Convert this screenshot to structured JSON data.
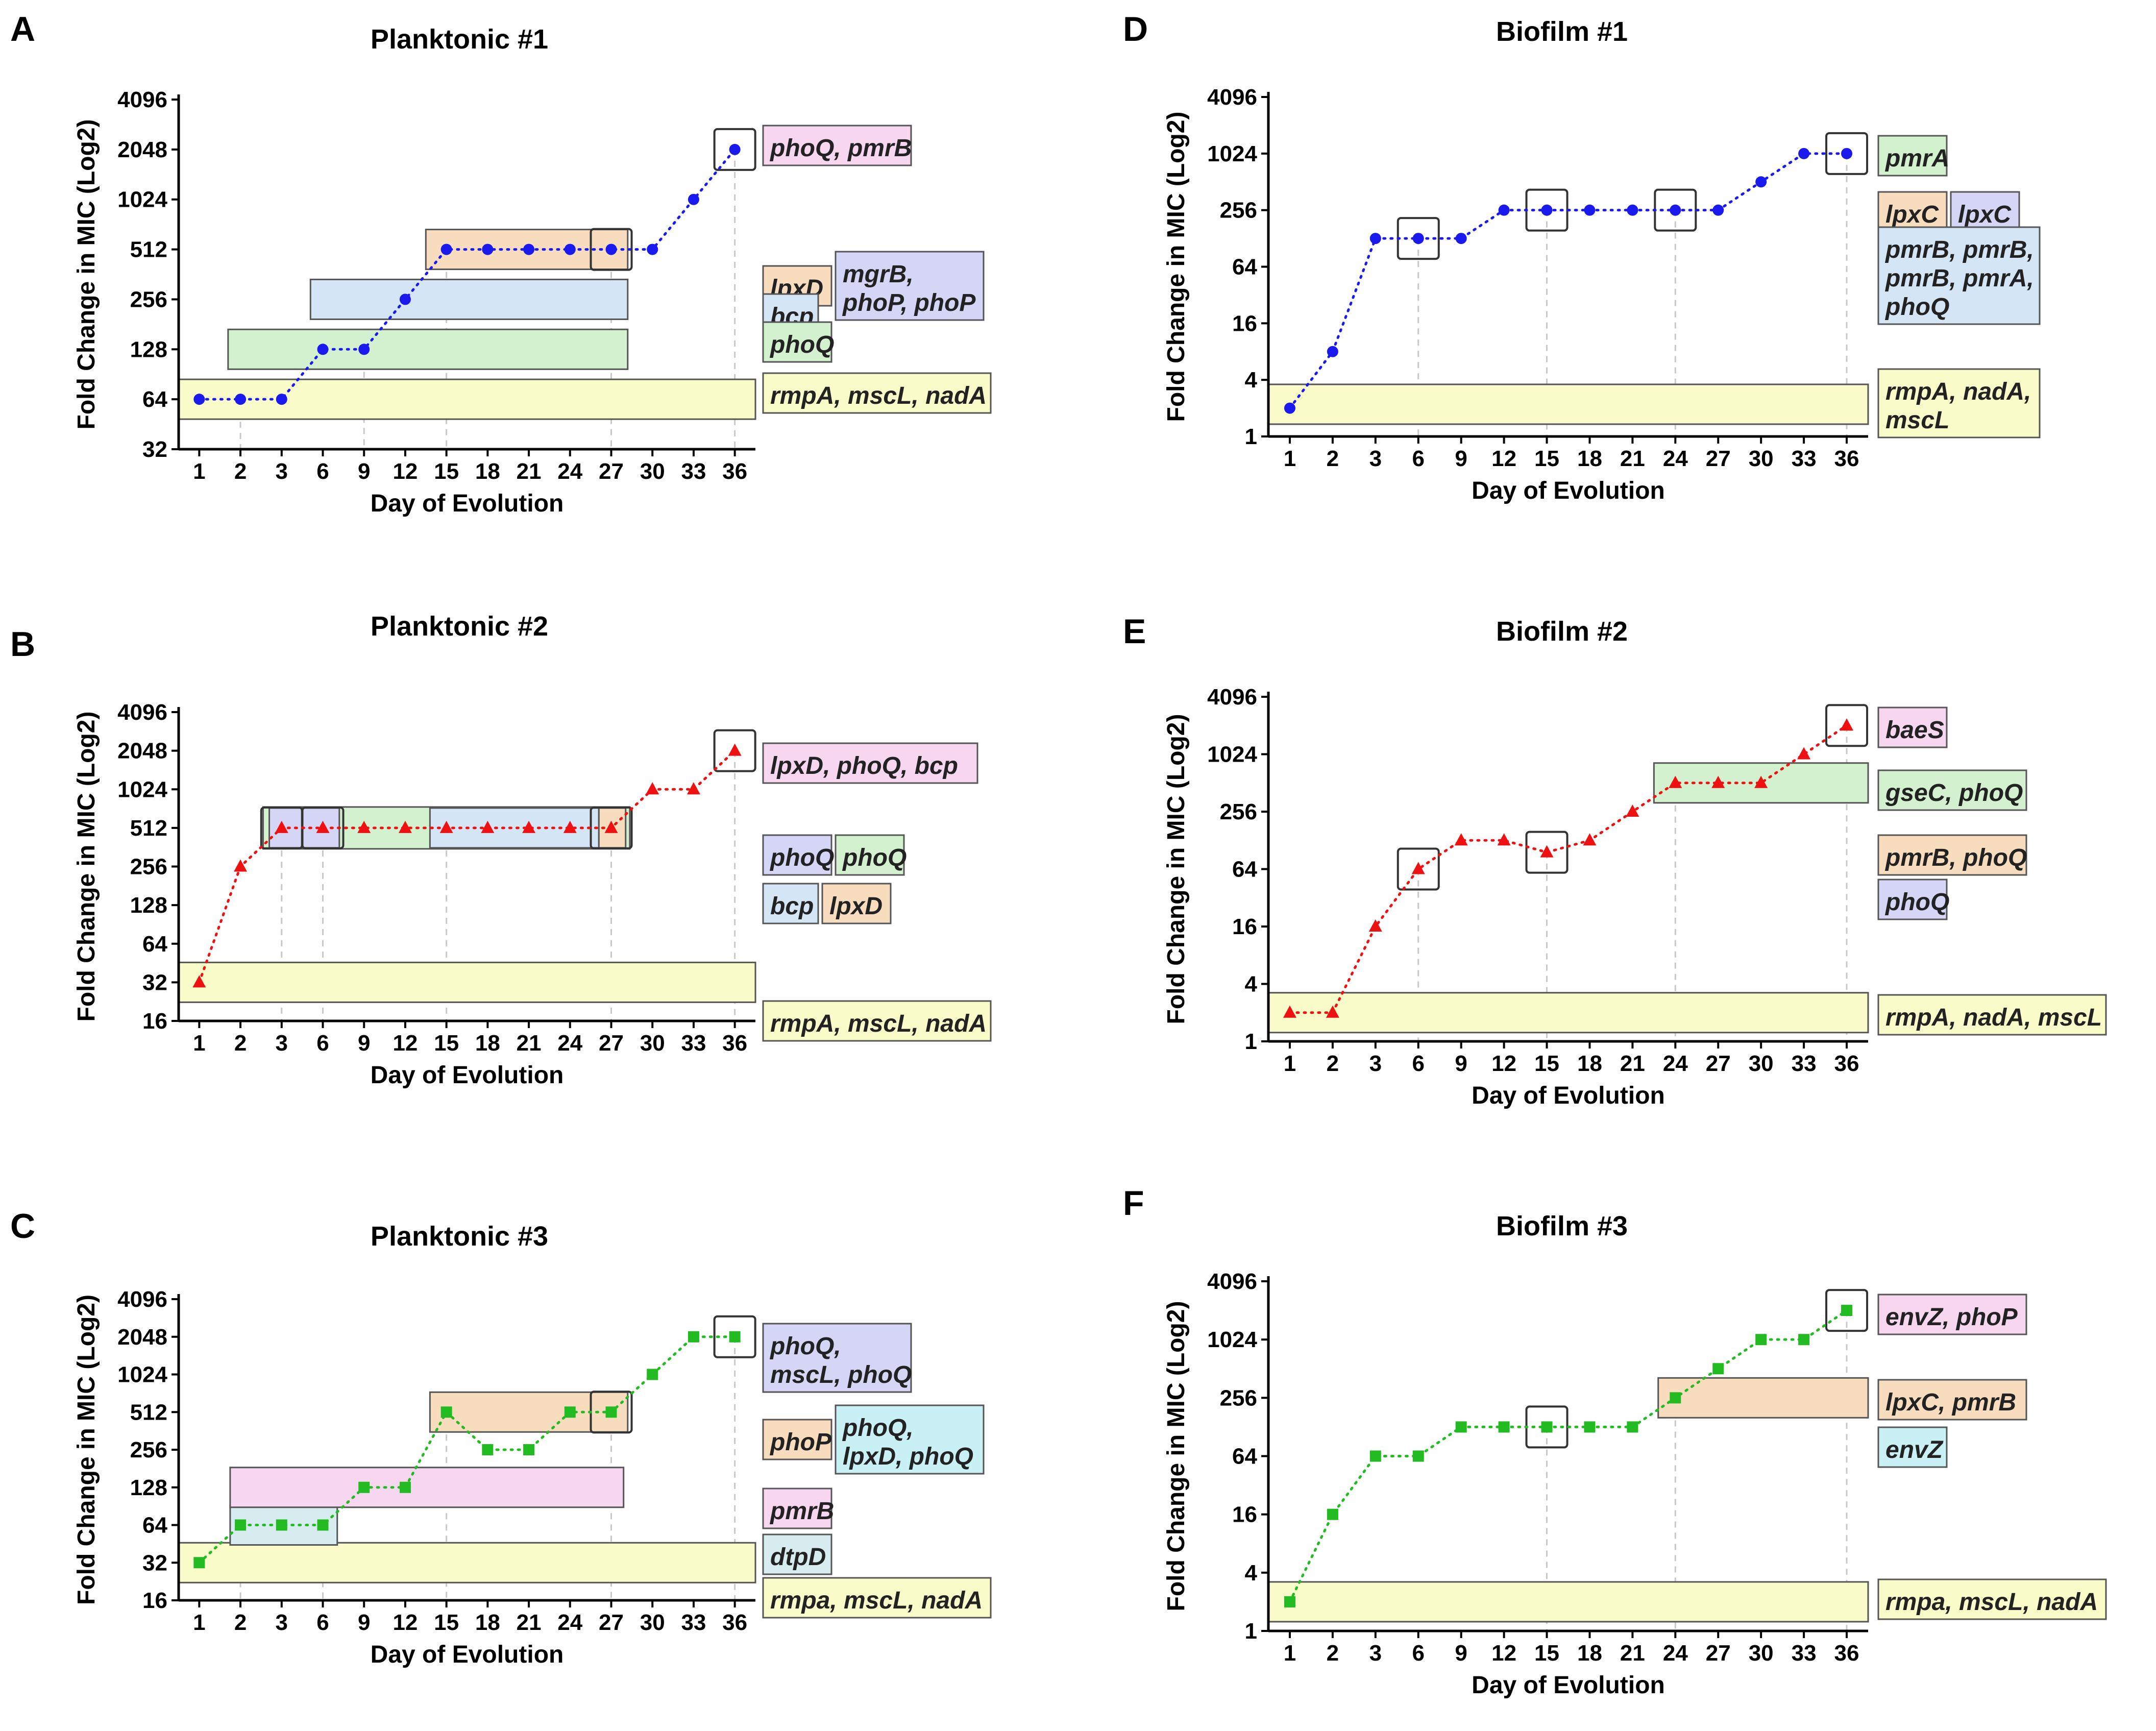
{
  "figure": {
    "colors": {
      "yellow": "#f9fbc9",
      "green": "#d3f1cf",
      "blue": "#d4e6f6",
      "orange": "#f8dcbe",
      "lavender": "#d5d5f6",
      "pink": "#f7d7ef",
      "cyan": "#c9f0f5",
      "series_blue": "#1a1aee",
      "series_red": "#ee1111",
      "series_green": "#22bb22",
      "grid": "#c8c8c8"
    },
    "panels": [
      {
        "letter": "A",
        "title": "Planktonic #1",
        "ylabel": "Fold Change in MIC (Log2)",
        "xlabel": "Day of Evolution",
        "chart_data": {
          "type": "line",
          "categories": [
            "1",
            "2",
            "3",
            "6",
            "9",
            "12",
            "15",
            "18",
            "21",
            "24",
            "27",
            "30",
            "33",
            "36"
          ],
          "values": [
            64,
            64,
            64,
            128,
            128,
            256,
            512,
            512,
            512,
            512,
            512,
            512,
            1024,
            2048
          ],
          "y_log2": true,
          "yticks": [
            32,
            64,
            128,
            256,
            512,
            1024,
            2048,
            4096
          ],
          "ytick_labels": [
            "32",
            "64",
            "128",
            "256",
            "512",
            "1024",
            "2048",
            "4096"
          ],
          "marker": "circle",
          "color": "#1a1aee",
          "highlight_days": [
            10,
            13
          ],
          "vlines": [
            1,
            4,
            6,
            10,
            13
          ],
          "spans": [
            {
              "from": -0.5,
              "to": 13.5,
              "level": 64,
              "color": "#f9fbc9"
            },
            {
              "from": 0.7,
              "to": 10.4,
              "level": 128,
              "color": "#d3f1cf"
            },
            {
              "from": 2.7,
              "to": 10.4,
              "level": 256,
              "color": "#d4e6f6"
            },
            {
              "from": 5.5,
              "to": 10.4,
              "level": 512,
              "color": "#f8dcbe"
            }
          ]
        },
        "labels": [
          {
            "boxes": [
              {
                "text": "phoQ, pmrB",
                "color": "#f7d7ef"
              }
            ]
          },
          {
            "boxes": [
              {
                "text": "lpxD",
                "color": "#f8dcbe"
              },
              {
                "text": "mgrB, / phoP, phoP",
                "color": "#d5d5f6"
              }
            ]
          },
          {
            "boxes": [
              {
                "text": "bcp",
                "color": "#d4e6f6"
              }
            ]
          },
          {
            "boxes": [
              {
                "text": "phoQ",
                "color": "#d3f1cf"
              }
            ]
          },
          {
            "boxes": [
              {
                "text": "rmpA, mscL, nadA",
                "color": "#f9fbc9"
              }
            ]
          }
        ]
      },
      {
        "letter": "B",
        "title": "Planktonic #2",
        "ylabel": "Fold Change in MIC (Log2)",
        "xlabel": "Day of Evolution",
        "chart_data": {
          "type": "line",
          "categories": [
            "1",
            "2",
            "3",
            "6",
            "9",
            "12",
            "15",
            "18",
            "21",
            "24",
            "27",
            "30",
            "33",
            "36"
          ],
          "values": [
            32,
            256,
            512,
            512,
            512,
            512,
            512,
            512,
            512,
            512,
            512,
            1024,
            1024,
            2048
          ],
          "y_log2": true,
          "yticks": [
            16,
            32,
            64,
            128,
            256,
            512,
            1024,
            2048,
            4096
          ],
          "ytick_labels": [
            "16",
            "32",
            "64",
            "128",
            "256",
            "512",
            "1024",
            "2048",
            "4096"
          ],
          "marker": "triangle",
          "color": "#ee1111",
          "highlight_days": [
            2,
            3,
            10,
            13
          ],
          "vlines": [
            2,
            3,
            6,
            10,
            13
          ],
          "spans": [
            {
              "from": -0.5,
              "to": 13.5,
              "level": 32,
              "color": "#f9fbc9"
            },
            {
              "from": 1.55,
              "to": 10.45,
              "level": 512,
              "color": "#d3f1cf",
              "big": true
            },
            {
              "from": 1.7,
              "to": 3.4,
              "level": 512,
              "color": "#d5d5f6"
            },
            {
              "from": 5.6,
              "to": 9.7,
              "level": 512,
              "color": "#d4e6f6"
            },
            {
              "from": 9.7,
              "to": 10.35,
              "level": 512,
              "color": "#f8dcbe"
            }
          ]
        },
        "labels": [
          {
            "boxes": [
              {
                "text": "lpxD, phoQ, bcp",
                "color": "#f7d7ef"
              }
            ]
          },
          {
            "boxes": [
              {
                "text": "phoQ",
                "color": "#d5d5f6"
              },
              {
                "text": "phoQ",
                "color": "#d3f1cf"
              }
            ]
          },
          {
            "boxes": [
              {
                "text": "bcp",
                "color": "#d4e6f6"
              },
              {
                "text": "lpxD",
                "color": "#f8dcbe"
              }
            ]
          },
          {
            "boxes": [
              {
                "text": "rmpA, mscL, nadA",
                "color": "#f9fbc9"
              }
            ]
          }
        ]
      },
      {
        "letter": "C",
        "title": "Planktonic #3",
        "ylabel": "Fold Change in MIC (Log2)",
        "xlabel": "Day of Evolution",
        "chart_data": {
          "type": "line",
          "categories": [
            "1",
            "2",
            "3",
            "6",
            "9",
            "12",
            "15",
            "18",
            "21",
            "24",
            "27",
            "30",
            "33",
            "36"
          ],
          "values": [
            32,
            64,
            64,
            64,
            128,
            128,
            512,
            256,
            256,
            512,
            512,
            1024,
            2048,
            2048
          ],
          "y_log2": true,
          "yticks": [
            16,
            32,
            64,
            128,
            256,
            512,
            1024,
            2048,
            4096
          ],
          "ytick_labels": [
            "16",
            "32",
            "64",
            "128",
            "256",
            "512",
            "1024",
            "2048",
            "4096"
          ],
          "marker": "square",
          "color": "#22bb22",
          "highlight_days": [
            10,
            13
          ],
          "vlines": [
            1,
            3,
            6,
            10,
            13
          ],
          "spans": [
            {
              "from": -0.5,
              "to": 13.5,
              "level": 32,
              "color": "#f9fbc9"
            },
            {
              "from": 0.75,
              "to": 3.35,
              "level": 64,
              "color": "#d6ecee"
            },
            {
              "from": 0.75,
              "to": 10.3,
              "level": 128,
              "color": "#f7d7ef"
            },
            {
              "from": 5.6,
              "to": 10.4,
              "level": 512,
              "color": "#f8dcbe"
            }
          ]
        },
        "labels": [
          {
            "boxes": [
              {
                "text": "phoQ, / mscL, phoQ",
                "color": "#d5d5f6"
              }
            ]
          },
          {
            "boxes": [
              {
                "text": "phoP",
                "color": "#f8dcbe"
              },
              {
                "text": "phoQ, / lpxD, phoQ",
                "color": "#c9f0f5"
              }
            ]
          },
          {
            "boxes": [
              {
                "text": "pmrB",
                "color": "#f7d7ef"
              }
            ]
          },
          {
            "boxes": [
              {
                "text": "dtpD",
                "color": "#d6ecee"
              }
            ]
          },
          {
            "boxes": [
              {
                "text": "rmpa, mscL, nadA",
                "color": "#f9fbc9"
              }
            ]
          }
        ]
      },
      {
        "letter": "D",
        "title": "Biofilm #1",
        "ylabel": "Fold Change in MIC (Log2)",
        "xlabel": "Day of Evolution",
        "chart_data": {
          "type": "line",
          "categories": [
            "1",
            "2",
            "3",
            "6",
            "9",
            "12",
            "15",
            "18",
            "21",
            "24",
            "27",
            "30",
            "33",
            "36"
          ],
          "values": [
            2,
            8,
            128,
            128,
            128,
            256,
            256,
            256,
            256,
            256,
            256,
            512,
            1024,
            1024
          ],
          "y_log2": true,
          "yticks": [
            1,
            4,
            16,
            64,
            256,
            1024,
            4096
          ],
          "ytick_labels": [
            "1",
            "4",
            "16",
            "64",
            "256",
            "1024",
            "4096"
          ],
          "marker": "circle",
          "color": "#1a1aee",
          "highlight_days": [
            3,
            6,
            9,
            13
          ],
          "vlines": [
            3,
            6,
            9,
            13
          ],
          "spans": [
            {
              "from": -0.5,
              "to": 13.5,
              "level": 2.2,
              "color": "#f9fbc9"
            }
          ]
        },
        "labels": [
          {
            "boxes": [
              {
                "text": "pmrA",
                "color": "#d3f1cf"
              }
            ]
          },
          {
            "boxes": [
              {
                "text": "lpxC",
                "color": "#f8dcbe"
              },
              {
                "text": "lpxC",
                "color": "#d5d5f6"
              }
            ]
          },
          {
            "boxes": [
              {
                "text": "pmrB, pmrB, / pmrB, pmrA, / phoQ",
                "color": "#d4e6f6"
              }
            ]
          },
          {
            "boxes": [
              {
                "text": "rmpA, nadA, / mscL",
                "color": "#f9fbc9"
              }
            ]
          }
        ]
      },
      {
        "letter": "E",
        "title": "Biofilm #2",
        "ylabel": "Fold Change in MIC (Log2)",
        "xlabel": "Day of Evolution",
        "chart_data": {
          "type": "line",
          "categories": [
            "1",
            "2",
            "3",
            "6",
            "9",
            "12",
            "15",
            "18",
            "21",
            "24",
            "27",
            "30",
            "33",
            "36"
          ],
          "values": [
            2,
            2,
            16,
            64,
            128,
            128,
            96,
            128,
            256,
            512,
            512,
            512,
            1024,
            2048
          ],
          "y_log2": true,
          "yticks": [
            1,
            4,
            16,
            64,
            256,
            1024,
            4096
          ],
          "ytick_labels": [
            "1",
            "4",
            "16",
            "64",
            "256",
            "1024",
            "4096"
          ],
          "marker": "triangle",
          "color": "#ee1111",
          "highlight_days": [
            3,
            6,
            13
          ],
          "vlines": [
            3,
            6,
            9,
            13
          ],
          "spans": [
            {
              "from": -0.5,
              "to": 13.5,
              "level": 2,
              "color": "#f9fbc9"
            },
            {
              "from": 8.5,
              "to": 13.5,
              "level": 512,
              "color": "#d3f1cf"
            }
          ]
        },
        "labels": [
          {
            "boxes": [
              {
                "text": "baeS",
                "color": "#f7d7ef"
              }
            ]
          },
          {
            "boxes": [
              {
                "text": "gseC, phoQ",
                "color": "#d3f1cf"
              }
            ]
          },
          {
            "boxes": [
              {
                "text": "pmrB, phoQ",
                "color": "#f8dcbe"
              }
            ]
          },
          {
            "boxes": [
              {
                "text": "phoQ",
                "color": "#d5d5f6"
              }
            ]
          },
          {
            "boxes": [
              {
                "text": "rmpA, nadA, mscL",
                "color": "#f9fbc9"
              }
            ]
          }
        ]
      },
      {
        "letter": "F",
        "title": "Biofilm #3",
        "ylabel": "Fold Change in MIC (Log2)",
        "xlabel": "Day of Evolution",
        "chart_data": {
          "type": "line",
          "categories": [
            "1",
            "2",
            "3",
            "6",
            "9",
            "12",
            "15",
            "18",
            "21",
            "24",
            "27",
            "30",
            "33",
            "36"
          ],
          "values": [
            2,
            16,
            64,
            64,
            128,
            128,
            128,
            128,
            128,
            256,
            512,
            1024,
            1024,
            2048
          ],
          "y_log2": true,
          "yticks": [
            1,
            4,
            16,
            64,
            256,
            1024,
            4096
          ],
          "ytick_labels": [
            "1",
            "4",
            "16",
            "64",
            "256",
            "1024",
            "4096"
          ],
          "marker": "square",
          "color": "#22bb22",
          "highlight_days": [
            6,
            13
          ],
          "vlines": [
            6,
            9,
            13
          ],
          "spans": [
            {
              "from": -0.5,
              "to": 13.5,
              "level": 2,
              "color": "#f9fbc9"
            },
            {
              "from": 8.6,
              "to": 13.5,
              "level": 256,
              "color": "#f8dcbe"
            }
          ]
        },
        "labels": [
          {
            "boxes": [
              {
                "text": "envZ, phoP",
                "color": "#f7d7ef"
              }
            ]
          },
          {
            "boxes": [
              {
                "text": "lpxC, pmrB",
                "color": "#f8dcbe"
              }
            ]
          },
          {
            "boxes": [
              {
                "text": "envZ",
                "color": "#c9f0f5"
              }
            ]
          },
          {
            "boxes": [
              {
                "text": "rmpa, mscL, nadA",
                "color": "#f9fbc9"
              }
            ]
          }
        ]
      }
    ]
  }
}
